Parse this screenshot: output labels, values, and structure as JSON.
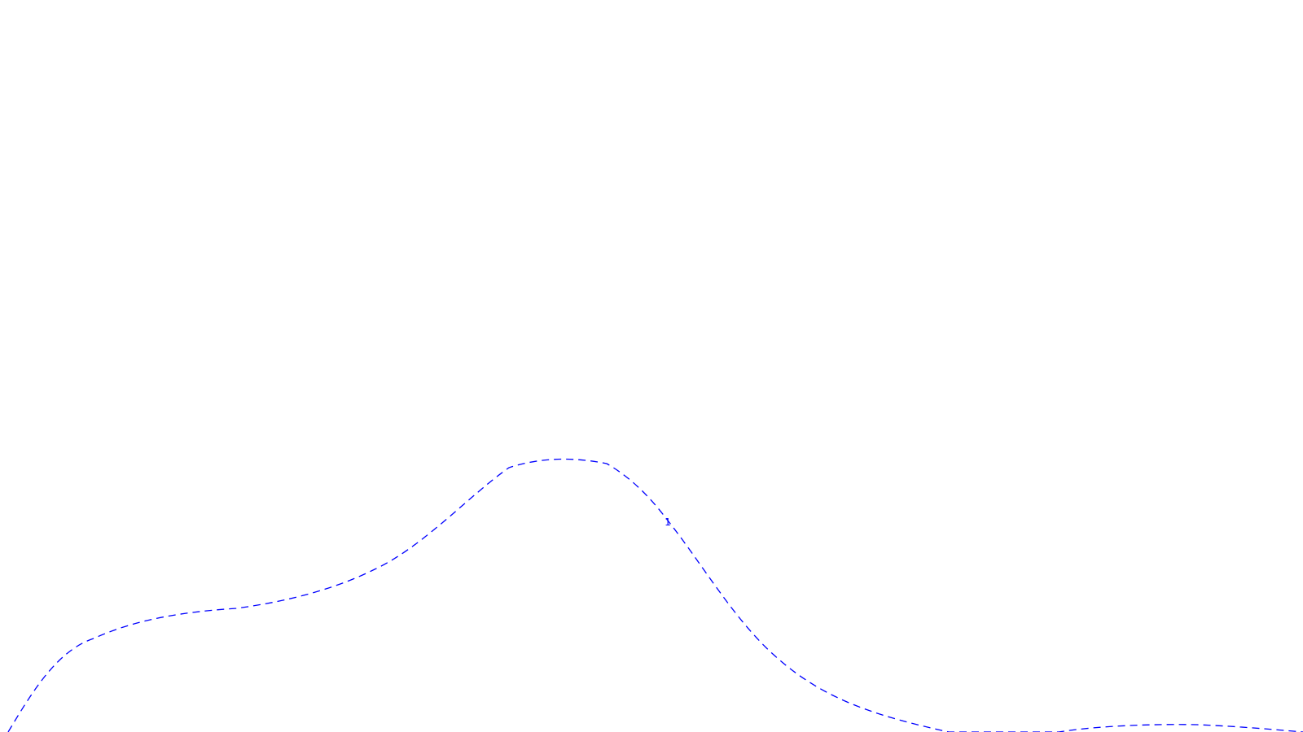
{
  "contours": [
    {
      "label": "1",
      "color": "#0000ff",
      "style": "dashed"
    }
  ]
}
